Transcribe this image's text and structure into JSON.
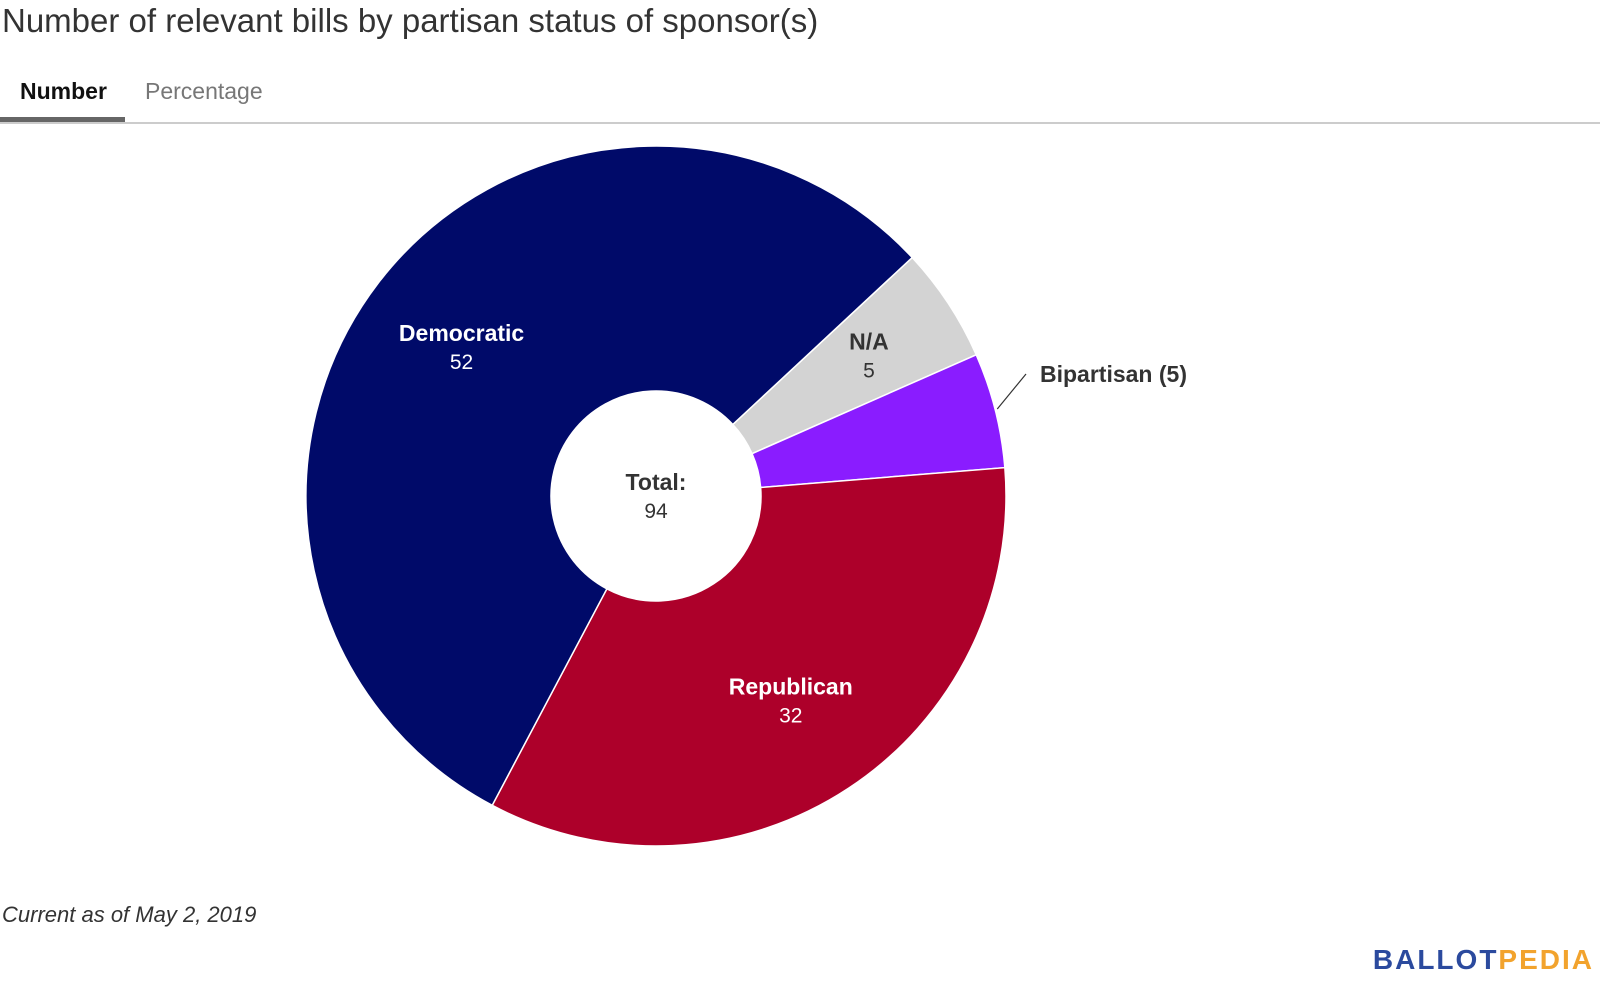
{
  "header": {
    "title": "Number of relevant bills by partisan status of sponsor(s)"
  },
  "tabs": [
    {
      "label": "Number",
      "active": true
    },
    {
      "label": "Percentage",
      "active": false
    }
  ],
  "chart_data": {
    "type": "pie",
    "donut": true,
    "center_label": "Total:",
    "center_value": "94",
    "slices": [
      {
        "label": "N/A",
        "value": 5,
        "color": "#d3d3d3",
        "text_color": "#333333",
        "label_position": "inside"
      },
      {
        "label": "Bipartisan",
        "value": 5,
        "color": "#8a1cff",
        "text_color": "#333333",
        "label_position": "outside",
        "outside_label": "Bipartisan (5)"
      },
      {
        "label": "Republican",
        "value": 32,
        "color": "#ad002a",
        "text_color": "#ffffff",
        "label_position": "inside"
      },
      {
        "label": "Democratic",
        "value": 52,
        "color": "#000a69",
        "text_color": "#ffffff",
        "label_position": "inside"
      }
    ]
  },
  "footer": {
    "note": "Current as of May 2, 2019",
    "logo_part1": "BALLOT",
    "logo_part2": "PEDIA"
  }
}
